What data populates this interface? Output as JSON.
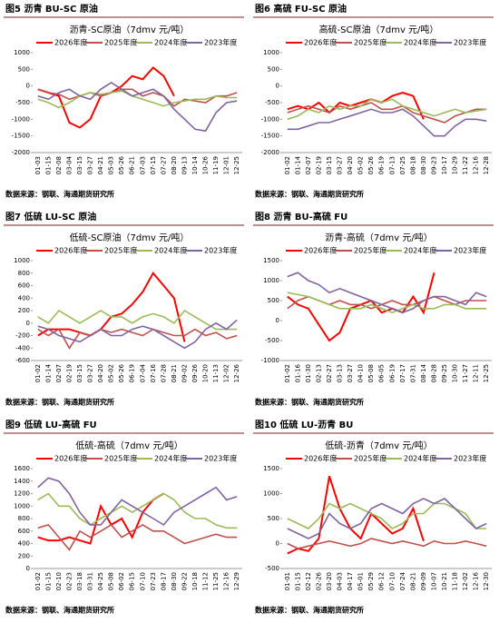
{
  "chart_data": [
    {
      "type": "line",
      "caption": "图5  沥青 BU-SC 原油",
      "title": "沥青-SC原油（7dmv 元/吨）",
      "source": "数据来源：钢联、海通期货研究所",
      "categories": [
        "01-03",
        "01-15",
        "02-08",
        "03-04",
        "03-15",
        "03-27",
        "04-21",
        "05-03",
        "05-26",
        "06-21",
        "07-03",
        "07-15",
        "07-27",
        "08-20",
        "09-13",
        "10-14",
        "10-26",
        "11-19",
        "12-01",
        "12-25"
      ],
      "ylim": [
        -2000,
        1000
      ],
      "yticks": [
        -2000,
        -1500,
        -1000,
        -500,
        0,
        500,
        1000
      ],
      "series": [
        {
          "name": "2026年度",
          "color": "#ff0000",
          "values": [
            -100,
            -200,
            -300,
            -1100,
            -1250,
            -1000,
            -300,
            -200,
            0,
            300,
            200,
            550,
            300,
            -300,
            null,
            null,
            null,
            null,
            null,
            null
          ]
        },
        {
          "name": "2025年度",
          "color": "#c0504d",
          "values": [
            -100,
            -200,
            -250,
            -400,
            -300,
            -200,
            -300,
            -200,
            -100,
            -100,
            -300,
            -200,
            -300,
            -600,
            -400,
            -450,
            -500,
            -300,
            -300,
            -200
          ]
        },
        {
          "name": "2024年度",
          "color": "#9bbb59",
          "values": [
            -400,
            -500,
            -650,
            -500,
            -300,
            -200,
            -250,
            -200,
            -150,
            -300,
            -400,
            -500,
            -600,
            -500,
            -450,
            -400,
            -400,
            -300,
            -350,
            -350
          ]
        },
        {
          "name": "2023年度",
          "color": "#8064a2",
          "values": [
            -300,
            -400,
            -200,
            -100,
            -300,
            -400,
            -100,
            100,
            -100,
            -300,
            -200,
            -100,
            -300,
            -700,
            -1000,
            -1300,
            -1350,
            -800,
            -500,
            -450
          ]
        }
      ]
    },
    {
      "type": "line",
      "caption": "图6  高硫 FU-SC 原油",
      "title": "高硫-SC原油（7dmv 元/吨）",
      "source": "数据来源：钢联、海通期货研究所",
      "categories": [
        "01-02",
        "01-14",
        "02-07",
        "02-19",
        "03-15",
        "03-27",
        "04-20",
        "05-02",
        "05-26",
        "06-19",
        "07-13",
        "07-25",
        "08-18",
        "08-30",
        "09-23",
        "10-17",
        "10-29",
        "11-22",
        "12-16",
        "12-28"
      ],
      "ylim": [
        -2000,
        1000
      ],
      "yticks": [
        -2000,
        -1500,
        -1000,
        -500,
        0,
        500,
        1000
      ],
      "series": [
        {
          "name": "2026年度",
          "color": "#ff0000",
          "values": [
            -700,
            -600,
            -700,
            -500,
            -800,
            -500,
            -600,
            -500,
            -400,
            -500,
            -300,
            -200,
            -300,
            -1000,
            null,
            null,
            null,
            null,
            null,
            null
          ]
        },
        {
          "name": "2025年度",
          "color": "#c0504d",
          "values": [
            -800,
            -700,
            -600,
            -700,
            -800,
            -600,
            -700,
            -600,
            -500,
            -700,
            -700,
            -600,
            -800,
            -900,
            -1000,
            -1100,
            -900,
            -800,
            -700,
            -700
          ]
        },
        {
          "name": "2024年度",
          "color": "#9bbb59",
          "values": [
            -1000,
            -900,
            -700,
            -800,
            -600,
            -700,
            -600,
            -600,
            -400,
            -500,
            -400,
            -600,
            -700,
            -800,
            -900,
            -800,
            -700,
            -800,
            -750,
            -700
          ]
        },
        {
          "name": "2023年度",
          "color": "#8064a2",
          "values": [
            -1300,
            -1300,
            -1200,
            -1100,
            -1100,
            -1000,
            -900,
            -800,
            -700,
            -800,
            -800,
            -700,
            -900,
            -1200,
            -1500,
            -1500,
            -1200,
            -1000,
            -1000,
            -1050
          ]
        }
      ]
    },
    {
      "type": "line",
      "caption": "图7  低硫 LU-SC 原油",
      "title": "低硫-SC原油（7dmv 元/吨）",
      "source": "数据来源：钢联、海通期货研究所",
      "categories": [
        "01-02",
        "01-14",
        "02-07",
        "02-19",
        "03-15",
        "03-27",
        "04-20",
        "05-02",
        "05-26",
        "06-19",
        "07-04",
        "07-16",
        "07-28",
        "08-21",
        "09-02",
        "09-26",
        "10-20",
        "11-13",
        "12-02",
        "12-26"
      ],
      "ylim": [
        -600,
        1000
      ],
      "yticks": [
        -600,
        -400,
        -200,
        0,
        200,
        400,
        600,
        800,
        1000
      ],
      "series": [
        {
          "name": "2026年度",
          "color": "#ff0000",
          "values": [
            -200,
            -100,
            -100,
            -100,
            -150,
            -200,
            -100,
            100,
            150,
            300,
            500,
            800,
            600,
            400,
            -300,
            null,
            null,
            null,
            null,
            null
          ]
        },
        {
          "name": "2025年度",
          "color": "#c0504d",
          "values": [
            -100,
            -200,
            -100,
            -400,
            -150,
            -200,
            -100,
            -150,
            -100,
            -150,
            -200,
            -100,
            -150,
            -200,
            -200,
            -100,
            -200,
            -150,
            -250,
            -200
          ]
        },
        {
          "name": "2024年度",
          "color": "#9bbb59",
          "values": [
            100,
            0,
            200,
            100,
            0,
            100,
            200,
            100,
            100,
            0,
            100,
            150,
            100,
            0,
            200,
            100,
            0,
            -100,
            -100,
            -100
          ]
        },
        {
          "name": "2023年度",
          "color": "#8064a2",
          "values": [
            -50,
            -100,
            -200,
            -250,
            -300,
            -200,
            -100,
            -200,
            -200,
            -100,
            -50,
            -100,
            -200,
            -300,
            -400,
            -300,
            -100,
            0,
            -100,
            50
          ]
        }
      ]
    },
    {
      "type": "line",
      "caption": "图8  沥青 BU-高硫 FU",
      "title": "沥青-高硫（7dmv 元/吨）",
      "source": "数据来源：钢联、海通期货研究所",
      "categories": [
        "01-02",
        "01-16",
        "01-30",
        "02-13",
        "02-27",
        "03-13",
        "03-27",
        "04-10",
        "05-08",
        "06-05",
        "06-19",
        "07-17",
        "07-31",
        "08-14",
        "08-28",
        "09-25",
        "10-30",
        "11-27",
        "12-11",
        "12-25"
      ],
      "ylim": [
        -1000,
        1500
      ],
      "yticks": [
        -1000,
        -500,
        0,
        500,
        1000,
        1500
      ],
      "series": [
        {
          "name": "2026年度",
          "color": "#ff0000",
          "values": [
            600,
            400,
            300,
            -100,
            -500,
            -300,
            300,
            400,
            500,
            200,
            300,
            200,
            600,
            200,
            1200,
            null,
            null,
            null,
            null,
            null
          ]
        },
        {
          "name": "2025年度",
          "color": "#c0504d",
          "values": [
            300,
            500,
            600,
            500,
            400,
            500,
            400,
            400,
            300,
            400,
            500,
            400,
            400,
            500,
            600,
            500,
            400,
            500,
            500,
            500
          ]
        },
        {
          "name": "2024年度",
          "color": "#9bbb59",
          "values": [
            700,
            650,
            600,
            500,
            400,
            300,
            300,
            300,
            400,
            300,
            200,
            300,
            400,
            300,
            300,
            400,
            400,
            300,
            300,
            300
          ]
        },
        {
          "name": "2023年度",
          "color": "#8064a2",
          "values": [
            1100,
            1200,
            1000,
            900,
            700,
            800,
            700,
            600,
            500,
            400,
            300,
            200,
            300,
            500,
            600,
            600,
            500,
            400,
            700,
            600
          ]
        }
      ]
    },
    {
      "type": "line",
      "caption": "图9  低硫 LU-高硫 FU",
      "title": "低硫-高硫（7dmv 元/吨）",
      "source": "数据来源：钢联、海通期货研究所",
      "categories": [
        "01-02",
        "01-15",
        "02-10",
        "02-23",
        "03-18",
        "03-31",
        "04-25",
        "05-08",
        "06-02",
        "06-15",
        "07-10",
        "07-23",
        "08-17",
        "08-30",
        "09-22",
        "10-18",
        "11-12",
        "11-25",
        "12-16",
        "12-29"
      ],
      "ylim": [
        0,
        1600
      ],
      "yticks": [
        0,
        200,
        400,
        600,
        800,
        1000,
        1200,
        1400,
        1600
      ],
      "series": [
        {
          "name": "2026年度",
          "color": "#ff0000",
          "values": [
            500,
            450,
            450,
            500,
            450,
            400,
            1000,
            700,
            800,
            500,
            900,
            1100,
            1200,
            null,
            null,
            null,
            null,
            null,
            null,
            null
          ]
        },
        {
          "name": "2025年度",
          "color": "#c0504d",
          "values": [
            650,
            700,
            500,
            300,
            600,
            500,
            600,
            700,
            500,
            600,
            700,
            600,
            600,
            500,
            400,
            450,
            500,
            550,
            500,
            500
          ]
        },
        {
          "name": "2024年度",
          "color": "#9bbb59",
          "values": [
            1100,
            1200,
            1000,
            1000,
            800,
            700,
            800,
            900,
            1000,
            900,
            1000,
            1100,
            1200,
            1100,
            900,
            800,
            800,
            700,
            650,
            650
          ]
        },
        {
          "name": "2023年度",
          "color": "#8064a2",
          "values": [
            1300,
            1450,
            1400,
            1200,
            900,
            700,
            700,
            900,
            1100,
            1000,
            900,
            800,
            700,
            900,
            1000,
            1100,
            1200,
            1300,
            1100,
            1150
          ]
        }
      ]
    },
    {
      "type": "line",
      "caption": "图10  低硫 LU-沥青 BU",
      "title": "低硫-沥青（7dmv 元/吨）",
      "source": "数据来源：钢联、海通期货研究所",
      "categories": [
        "01-01",
        "01-15",
        "02-12",
        "02-26",
        "03-20",
        "04-03",
        "04-17",
        "05-01",
        "05-29",
        "06-12",
        "07-10",
        "07-24",
        "08-21",
        "09-09",
        "10-07",
        "10-21",
        "11-18",
        "12-02",
        "12-16",
        "12-30"
      ],
      "ylim": [
        -500,
        1500
      ],
      "yticks": [
        -500,
        0,
        500,
        1000,
        1500
      ],
      "series": [
        {
          "name": "2026年度",
          "color": "#ff0000",
          "values": [
            -200,
            -100,
            -150,
            100,
            1350,
            700,
            300,
            100,
            600,
            400,
            200,
            300,
            700,
            50,
            null,
            null,
            null,
            null,
            null,
            null
          ]
        },
        {
          "name": "2025年度",
          "color": "#c0504d",
          "values": [
            0,
            -100,
            -50,
            0,
            50,
            0,
            -50,
            0,
            100,
            50,
            0,
            50,
            0,
            -50,
            50,
            0,
            0,
            50,
            0,
            -50
          ]
        },
        {
          "name": "2024年度",
          "color": "#9bbb59",
          "values": [
            500,
            400,
            300,
            500,
            800,
            700,
            800,
            700,
            600,
            500,
            300,
            400,
            600,
            600,
            800,
            800,
            700,
            600,
            300,
            300
          ]
        },
        {
          "name": "2023年度",
          "color": "#8064a2",
          "values": [
            300,
            200,
            100,
            200,
            600,
            400,
            300,
            400,
            700,
            800,
            700,
            600,
            800,
            900,
            800,
            900,
            700,
            500,
            300,
            400
          ]
        }
      ]
    }
  ]
}
